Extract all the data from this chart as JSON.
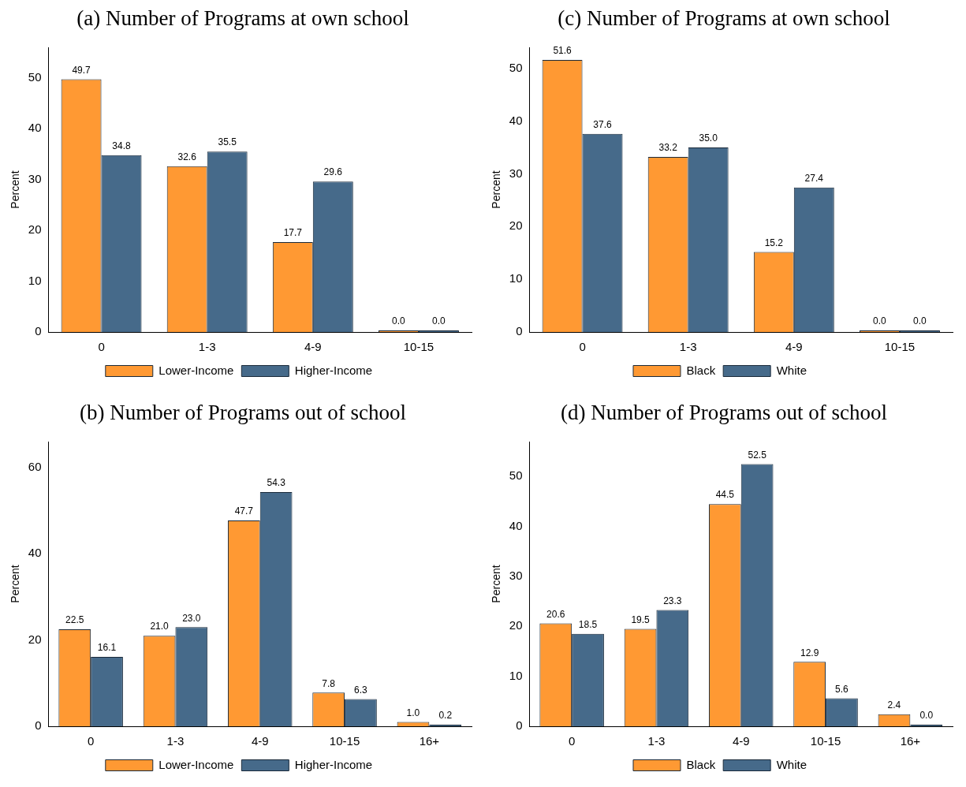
{
  "chart_data": [
    {
      "type": "bar",
      "title": "(a) Number of Programs at own school",
      "ylabel": "Percent",
      "categories": [
        "0",
        "1-3",
        "4-9",
        "10-15"
      ],
      "ylim": [
        0,
        56
      ],
      "yticks": [
        0,
        10,
        20,
        30,
        40,
        50
      ],
      "grid": false,
      "legend": "bottom",
      "series": [
        {
          "name": "Lower-Income",
          "color": "#ff9933",
          "values": [
            49.7,
            32.6,
            17.7,
            0.0
          ],
          "value_labels": [
            "49.7",
            "32.6",
            "17.7",
            "0.0"
          ]
        },
        {
          "name": "Higher-Income",
          "color": "#466a8a",
          "values": [
            34.8,
            35.5,
            29.6,
            0.0
          ],
          "value_labels": [
            "34.8",
            "35.5",
            "29.6",
            "0.0"
          ]
        }
      ]
    },
    {
      "type": "bar",
      "title": "(c) Number of Programs at own school",
      "ylabel": "Percent",
      "categories": [
        "0",
        "1-3",
        "4-9",
        "10-15"
      ],
      "ylim": [
        0,
        54
      ],
      "yticks": [
        0,
        10,
        20,
        30,
        40,
        50
      ],
      "grid": false,
      "legend": "bottom",
      "series": [
        {
          "name": "Black",
          "color": "#ff9933",
          "values": [
            51.6,
            33.2,
            15.2,
            0.0
          ],
          "value_labels": [
            "51.6",
            "33.2",
            "15.2",
            "0.0"
          ]
        },
        {
          "name": "White",
          "color": "#466a8a",
          "values": [
            37.6,
            35.0,
            27.4,
            0.0
          ],
          "value_labels": [
            "37.6",
            "35.0",
            "27.4",
            "0.0"
          ]
        }
      ]
    },
    {
      "type": "bar",
      "title": "(b) Number of Programs out of school",
      "ylabel": "Percent",
      "categories": [
        "0",
        "1-3",
        "4-9",
        "10-15",
        "16+"
      ],
      "ylim": [
        0,
        66
      ],
      "yticks": [
        0,
        20,
        40,
        60
      ],
      "grid": false,
      "legend": "bottom",
      "series": [
        {
          "name": "Lower-Income",
          "color": "#ff9933",
          "values": [
            22.5,
            21.0,
            47.7,
            7.8,
            1.0
          ],
          "value_labels": [
            "22.5",
            "21.0",
            "47.7",
            "7.8",
            "1.0"
          ]
        },
        {
          "name": "Higher-Income",
          "color": "#466a8a",
          "values": [
            16.1,
            23.0,
            54.3,
            6.3,
            0.2
          ],
          "value_labels": [
            "16.1",
            "23.0",
            "54.3",
            "6.3",
            "0.2"
          ]
        }
      ]
    },
    {
      "type": "bar",
      "title": "(d) Number of Programs out of school",
      "ylabel": "Percent",
      "categories": [
        "0",
        "1-3",
        "4-9",
        "10-15",
        "16+"
      ],
      "ylim": [
        0,
        57
      ],
      "yticks": [
        0,
        10,
        20,
        30,
        40,
        50
      ],
      "grid": false,
      "legend": "bottom",
      "series": [
        {
          "name": "Black",
          "color": "#ff9933",
          "values": [
            20.6,
            19.5,
            44.5,
            12.9,
            2.4
          ],
          "value_labels": [
            "20.6",
            "19.5",
            "44.5",
            "12.9",
            "2.4"
          ]
        },
        {
          "name": "White",
          "color": "#466a8a",
          "values": [
            18.5,
            23.3,
            52.5,
            5.6,
            0.0
          ],
          "value_labels": [
            "18.5",
            "23.3",
            "52.5",
            "5.6",
            "0.0"
          ]
        }
      ]
    }
  ]
}
